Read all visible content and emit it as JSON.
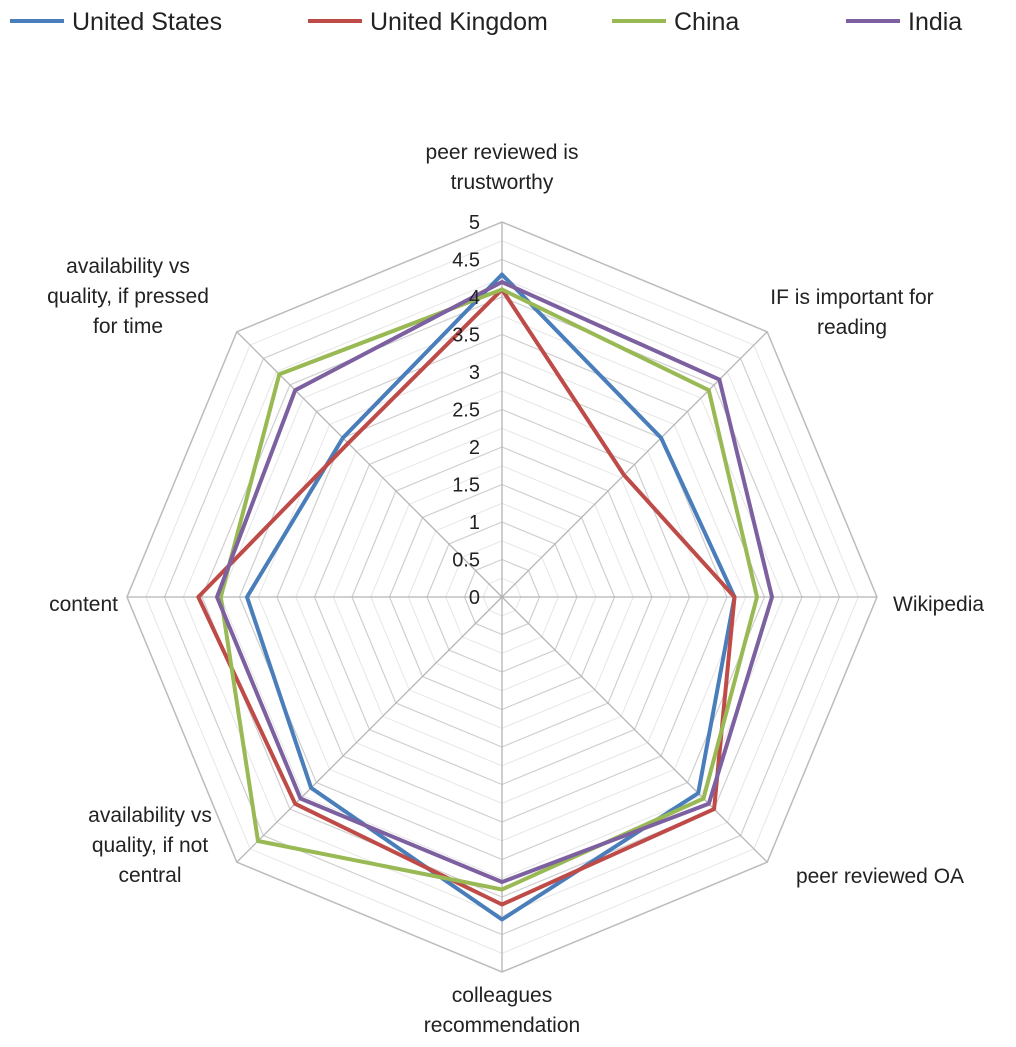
{
  "chart_data": {
    "type": "radar",
    "axes": [
      [
        "peer reviewed is",
        "trustworthy"
      ],
      [
        "IF is important for",
        "reading"
      ],
      [
        "Wikipedia"
      ],
      [
        "peer reviewed OA"
      ],
      [
        "colleagues",
        "recommendation"
      ],
      [
        "availability vs",
        "quality, if not",
        "central"
      ],
      [
        "content"
      ],
      [
        "availability vs",
        "quality, if pressed",
        "for time"
      ]
    ],
    "ticks": [
      "0",
      "0.5",
      "1",
      "1.5",
      "2",
      "2.5",
      "3",
      "3.5",
      "4",
      "4.5",
      "5"
    ],
    "rmin": 0,
    "rmax": 5,
    "minor_grid_step": 0.25,
    "series": [
      {
        "name": "United States",
        "color": "#4a7ebb",
        "values": [
          4.3,
          3.0,
          3.1,
          3.7,
          4.3,
          3.6,
          3.4,
          3.0
        ]
      },
      {
        "name": "United Kingdom",
        "color": "#be4b48",
        "values": [
          4.1,
          2.3,
          3.1,
          4.0,
          4.1,
          3.9,
          4.05,
          2.9
        ]
      },
      {
        "name": "China",
        "color": "#98b954",
        "values": [
          4.1,
          3.9,
          3.4,
          3.8,
          3.9,
          4.6,
          3.75,
          4.2
        ]
      },
      {
        "name": "India",
        "color": "#7d60a0",
        "values": [
          4.2,
          4.1,
          3.6,
          3.9,
          3.8,
          3.8,
          3.8,
          3.9
        ]
      }
    ],
    "legend": "top",
    "grid": true
  }
}
